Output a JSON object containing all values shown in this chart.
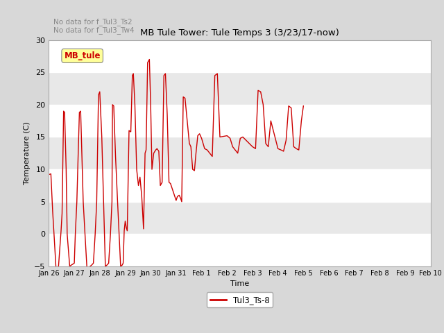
{
  "title": "MB Tule Tower: Tule Temps 3 (3/23/17-now)",
  "xlabel": "Time",
  "ylabel": "Temperature (C)",
  "ylim": [
    -5,
    30
  ],
  "no_data_texts": [
    "No data for f_Tul3_Ts2",
    "No data for f_Tul3_Tw4"
  ],
  "legend_label": "Tul3_Ts-8",
  "legend_box_label": "MB_tule",
  "line_color": "#cc0000",
  "fig_bg_color": "#d8d8d8",
  "plot_bg_color": "#e8e8e8",
  "stripe_color": "#d8d8d8",
  "x_tick_labels": [
    "Jan 26",
    "Jan 27",
    "Jan 28",
    "Jan 29",
    "Jan 30",
    "Jan 31",
    "Feb 1",
    "Feb 2",
    "Feb 3",
    "Feb 4",
    "Feb 5",
    "Feb 6",
    "Feb 7",
    "Feb 8",
    "Feb 9",
    "Feb 10"
  ],
  "x_ticks": [
    0,
    1,
    2,
    3,
    4,
    5,
    6,
    7,
    8,
    9,
    10,
    11,
    12,
    13,
    14,
    15
  ],
  "y_ticks": [
    -5,
    0,
    5,
    10,
    15,
    20,
    25,
    30
  ],
  "data_x": [
    0.0,
    0.08,
    0.15,
    0.2,
    0.28,
    0.38,
    0.48,
    0.52,
    0.58,
    0.62,
    0.68,
    0.72,
    0.82,
    0.88,
    1.0,
    1.04,
    1.1,
    1.15,
    1.2,
    1.25,
    1.3,
    1.35,
    1.42,
    1.5,
    1.55,
    1.62,
    1.68,
    1.75,
    1.82,
    1.88,
    1.95,
    2.0,
    2.08,
    2.15,
    2.22,
    2.28,
    2.35,
    2.42,
    2.48,
    2.5,
    2.55,
    2.62,
    2.7,
    2.82,
    2.88,
    2.92,
    2.96,
    3.0,
    3.04,
    3.08,
    3.15,
    3.22,
    3.28,
    3.32,
    3.38,
    3.45,
    3.52,
    3.58,
    3.65,
    3.72,
    3.78,
    3.82,
    3.88,
    3.95,
    4.0,
    4.05,
    4.12,
    4.2,
    4.25,
    4.32,
    4.38,
    4.45,
    4.52,
    4.58,
    4.65,
    4.72,
    4.78,
    5.0,
    5.05,
    5.12,
    5.18,
    5.22,
    5.28,
    5.35,
    5.52,
    5.58,
    5.65,
    5.72,
    5.78,
    5.85,
    5.92,
    6.0,
    6.12,
    6.22,
    6.32,
    6.42,
    6.52,
    6.62,
    6.72,
    7.0,
    7.12,
    7.22,
    7.32,
    7.42,
    7.52,
    7.62,
    8.0,
    8.12,
    8.22,
    8.32,
    8.42,
    8.52,
    8.62,
    8.72,
    9.0,
    9.12,
    9.22,
    9.32,
    9.42,
    9.52,
    9.62,
    9.72,
    9.82,
    9.92,
    10.0
  ],
  "data_y": [
    9.2,
    9.3,
    3.5,
    0.2,
    -5.2,
    -5.0,
    0.5,
    3.2,
    19.0,
    18.8,
    10.0,
    0.0,
    -5.0,
    -4.8,
    -4.5,
    0.0,
    5.0,
    12.0,
    18.8,
    19.0,
    12.0,
    5.0,
    0.0,
    -5.5,
    -5.2,
    -5.0,
    -4.8,
    -4.5,
    0.0,
    5.0,
    21.5,
    22.0,
    15.0,
    5.0,
    -5.0,
    -4.8,
    -4.5,
    0.0,
    5.0,
    20.0,
    19.8,
    12.0,
    5.0,
    -5.0,
    -4.8,
    -4.5,
    0.5,
    2.0,
    1.0,
    0.5,
    16.0,
    15.8,
    24.5,
    24.8,
    20.0,
    10.0,
    7.5,
    8.8,
    5.8,
    0.8,
    12.5,
    13.0,
    26.5,
    27.0,
    20.0,
    10.0,
    12.5,
    13.0,
    13.2,
    12.8,
    7.5,
    8.0,
    24.5,
    24.8,
    18.5,
    8.0,
    7.8,
    5.2,
    5.8,
    6.0,
    5.5,
    5.0,
    21.2,
    21.0,
    14.0,
    13.5,
    10.0,
    9.8,
    12.5,
    15.2,
    15.5,
    14.8,
    13.2,
    13.0,
    12.5,
    12.0,
    24.5,
    24.8,
    15.0,
    15.2,
    14.8,
    13.5,
    13.0,
    12.5,
    14.8,
    15.0,
    13.5,
    13.2,
    22.2,
    22.0,
    20.0,
    14.0,
    13.5,
    17.5,
    13.2,
    13.0,
    12.8,
    14.5,
    19.8,
    19.5,
    13.5,
    13.2,
    13.0,
    17.5,
    19.8
  ]
}
